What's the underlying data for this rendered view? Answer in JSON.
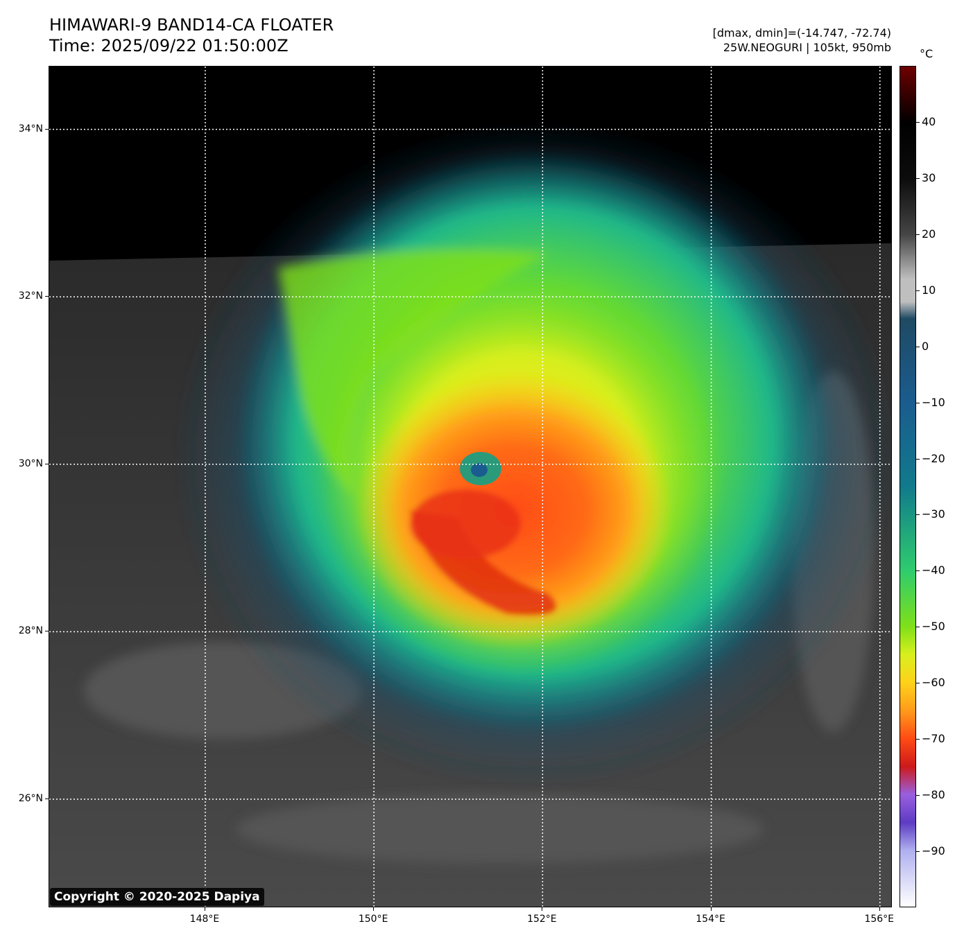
{
  "header": {
    "title": "HIMAWARI-9 BAND14-CA FLOATER",
    "time": "Time: 2025/09/22 01:50:00Z",
    "range": "[dmax, dmin]=(-14.747, -72.74)",
    "storm": "25W.NEOGURI | 105kt, 950mb"
  },
  "map": {
    "lon_range": [
      146.15,
      156.15
    ],
    "lat_range": [
      24.7,
      34.75
    ],
    "lat_ticks": [
      {
        "value": 34,
        "label": "34°N"
      },
      {
        "value": 32,
        "label": "32°N"
      },
      {
        "value": 30,
        "label": "30°N"
      },
      {
        "value": 28,
        "label": "28°N"
      },
      {
        "value": 26,
        "label": "26°N"
      }
    ],
    "lon_ticks": [
      {
        "value": 148,
        "label": "148°E"
      },
      {
        "value": 150,
        "label": "150°E"
      },
      {
        "value": 152,
        "label": "152°E"
      },
      {
        "value": 154,
        "label": "154°E"
      },
      {
        "value": 156,
        "label": "156°E"
      }
    ],
    "storm_center": {
      "lon": 151.3,
      "lat": 29.85
    },
    "copyright": "Copyright © 2020-2025 Dapiya"
  },
  "colorbar": {
    "unit": "°C",
    "range": [
      -100,
      50
    ],
    "ticks": [
      {
        "value": 40,
        "label": "40"
      },
      {
        "value": 30,
        "label": "30"
      },
      {
        "value": 20,
        "label": "20"
      },
      {
        "value": 10,
        "label": "10"
      },
      {
        "value": 0,
        "label": "0"
      },
      {
        "value": -10,
        "label": "−10"
      },
      {
        "value": -20,
        "label": "−20"
      },
      {
        "value": -30,
        "label": "−30"
      },
      {
        "value": -40,
        "label": "−40"
      },
      {
        "value": -50,
        "label": "−50"
      },
      {
        "value": -60,
        "label": "−60"
      },
      {
        "value": -70,
        "label": "−70"
      },
      {
        "value": -80,
        "label": "−80"
      },
      {
        "value": -90,
        "label": "−90"
      }
    ],
    "colors": {
      "c50": "#6e0000",
      "c40": "#000000",
      "c30": "#0c0c0c",
      "c20": "#454545",
      "c10": "#bfbfbf",
      "c5": "#1f4a63",
      "c_10": "#1a5c8f",
      "c_25": "#117a8c",
      "c_40": "#2ecc6e",
      "c_50": "#7fe019",
      "c_55": "#d8ef1c",
      "c_60": "#ffd21a",
      "c_65": "#ff9b1a",
      "c_70": "#ff4b14",
      "c_75": "#cc1a1a",
      "c_80": "#9a5fe0",
      "c_85": "#5c3cc2",
      "c_90": "#b0b0f0",
      "c_100": "#ffffff"
    }
  }
}
